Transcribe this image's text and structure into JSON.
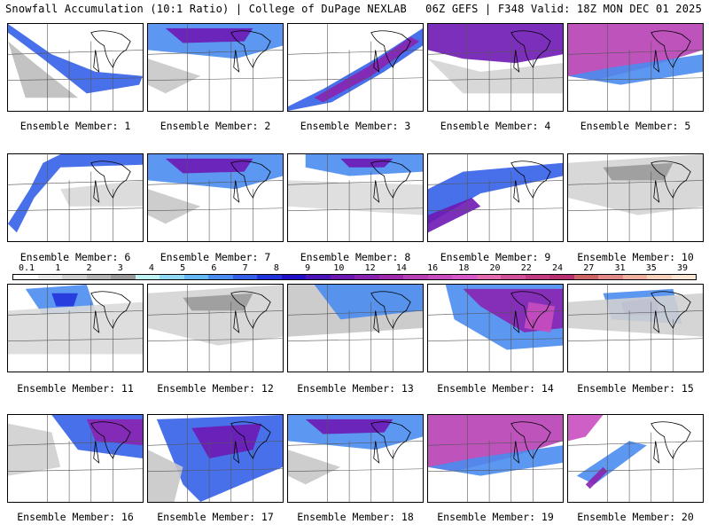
{
  "header": {
    "left": "Snowfall Accumulation (10:1 Ratio) | College of DuPage NEXLAB",
    "right": "06Z GEFS | F348 Valid: 18Z MON DEC 01 2025"
  },
  "legend": {
    "labels": [
      "0.1",
      "1",
      "2",
      "3",
      "4",
      "5",
      "6",
      "7",
      "8",
      "9",
      "10",
      "12",
      "14",
      "16",
      "18",
      "20",
      "22",
      "24",
      "27",
      "31",
      "35",
      "39"
    ],
    "colors": [
      "#ffffff",
      "#e8e8e8",
      "#cfcfcf",
      "#b4b4b4",
      "#9a9a9a",
      "#bff2f2",
      "#8fd8f6",
      "#66b8f4",
      "#4a8cf0",
      "#3460e8",
      "#2233dc",
      "#2210c8",
      "#4a14b8",
      "#6e18b4",
      "#8a22b0",
      "#a02aac",
      "#b640b4",
      "#c84ec0",
      "#d65ac8",
      "#e36cb0",
      "#d0509a",
      "#c23c84",
      "#b83070",
      "#cc6666",
      "#e08a8a",
      "#f0b0a0",
      "#f7d0bc",
      "#fbe6d4"
    ]
  },
  "members": [
    {
      "label": "Ensemble Member: 1",
      "pattern": "band-sw"
    },
    {
      "label": "Ensemble Member: 2",
      "pattern": "north-band"
    },
    {
      "label": "Ensemble Member: 3",
      "pattern": "diag-band"
    },
    {
      "label": "Ensemble Member: 4",
      "pattern": "north-heavy"
    },
    {
      "label": "Ensemble Member: 5",
      "pattern": "north-magenta"
    },
    {
      "label": "Ensemble Member: 6",
      "pattern": "west-edge"
    },
    {
      "label": "Ensemble Member: 7",
      "pattern": "north-band"
    },
    {
      "label": "Ensemble Member: 8",
      "pattern": "north-light"
    },
    {
      "label": "Ensemble Member: 9",
      "pattern": "west-blue"
    },
    {
      "label": "Ensemble Member: 10",
      "pattern": "light-gray"
    },
    {
      "label": "Ensemble Member: 11",
      "pattern": "north-spots"
    },
    {
      "label": "Ensemble Member: 12",
      "pattern": "light-gray"
    },
    {
      "label": "Ensemble Member: 13",
      "pattern": "north-gray"
    },
    {
      "label": "Ensemble Member: 14",
      "pattern": "lakes-heavy"
    },
    {
      "label": "Ensemble Member: 15",
      "pattern": "lakes-blue"
    },
    {
      "label": "Ensemble Member: 16",
      "pattern": "ne-heavy"
    },
    {
      "label": "Ensemble Member: 17",
      "pattern": "center-heavy"
    },
    {
      "label": "Ensemble Member: 18",
      "pattern": "north-band"
    },
    {
      "label": "Ensemble Member: 19",
      "pattern": "north-magenta"
    },
    {
      "label": "Ensemble Member: 20",
      "pattern": "se-streaks"
    }
  ]
}
